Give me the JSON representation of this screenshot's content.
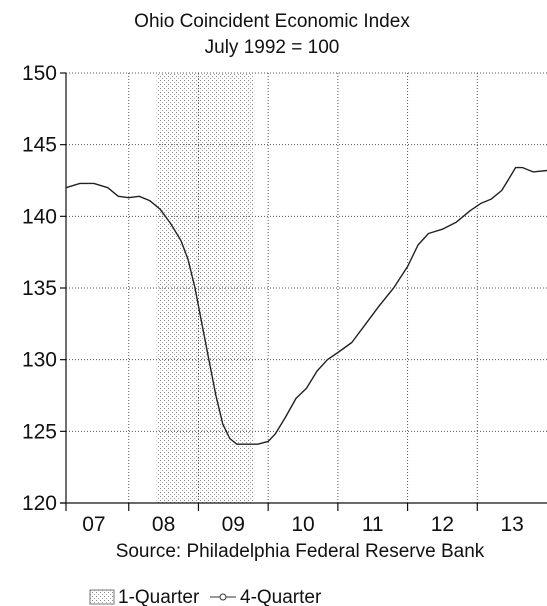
{
  "chart_data": {
    "type": "line",
    "title": "Ohio Coincident Economic Index",
    "subtitle": "July 1992 = 100",
    "source": "Source: Philadelphia Federal Reserve Bank",
    "xlabel": "",
    "ylabel": "",
    "ylim": [
      120,
      150
    ],
    "yticks": [
      120,
      125,
      130,
      135,
      140,
      145,
      150
    ],
    "xlim": [
      2006.6,
      2013.5
    ],
    "x_tick_labels": [
      "07",
      "08",
      "09",
      "10",
      "11",
      "12",
      "13"
    ],
    "x_tick_label_positions": [
      2007.0,
      2008.0,
      2009.0,
      2010.0,
      2011.0,
      2012.0,
      2013.0
    ],
    "x_year_boundaries": [
      2007.5,
      2008.5,
      2009.5,
      2010.5,
      2011.5,
      2012.5
    ],
    "grid": true,
    "recession_shading": {
      "start": 2007.9,
      "end": 2009.3
    },
    "legend": {
      "placement": "bottom-left",
      "entries": [
        {
          "label": "1-Quarter",
          "style": "shaded-box"
        },
        {
          "label": "4-Quarter",
          "style": "line-with-marker"
        }
      ]
    },
    "series": [
      {
        "name": "4-Quarter",
        "color": "#222222",
        "points": [
          [
            2006.6,
            142.0
          ],
          [
            2006.8,
            142.3
          ],
          [
            2007.0,
            142.3
          ],
          [
            2007.2,
            142.0
          ],
          [
            2007.35,
            141.4
          ],
          [
            2007.5,
            141.3
          ],
          [
            2007.65,
            141.4
          ],
          [
            2007.8,
            141.1
          ],
          [
            2007.95,
            140.5
          ],
          [
            2008.1,
            139.5
          ],
          [
            2008.25,
            138.3
          ],
          [
            2008.35,
            137.0
          ],
          [
            2008.45,
            135.0
          ],
          [
            2008.55,
            132.5
          ],
          [
            2008.65,
            130.0
          ],
          [
            2008.75,
            127.5
          ],
          [
            2008.85,
            125.5
          ],
          [
            2008.95,
            124.5
          ],
          [
            2009.05,
            124.1
          ],
          [
            2009.2,
            124.1
          ],
          [
            2009.35,
            124.1
          ],
          [
            2009.5,
            124.3
          ],
          [
            2009.6,
            124.8
          ],
          [
            2009.75,
            126.0
          ],
          [
            2009.9,
            127.3
          ],
          [
            2010.05,
            128.0
          ],
          [
            2010.2,
            129.2
          ],
          [
            2010.35,
            130.0
          ],
          [
            2010.5,
            130.5
          ],
          [
            2010.7,
            131.2
          ],
          [
            2010.9,
            132.5
          ],
          [
            2011.1,
            133.8
          ],
          [
            2011.3,
            135.0
          ],
          [
            2011.5,
            136.5
          ],
          [
            2011.65,
            138.0
          ],
          [
            2011.8,
            138.8
          ],
          [
            2012.0,
            139.1
          ],
          [
            2012.2,
            139.6
          ],
          [
            2012.4,
            140.4
          ],
          [
            2012.55,
            140.9
          ],
          [
            2012.7,
            141.2
          ],
          [
            2012.85,
            141.8
          ],
          [
            2012.95,
            142.6
          ],
          [
            2013.05,
            143.4
          ],
          [
            2013.15,
            143.4
          ],
          [
            2013.3,
            143.1
          ],
          [
            2013.5,
            143.2
          ]
        ]
      }
    ]
  }
}
